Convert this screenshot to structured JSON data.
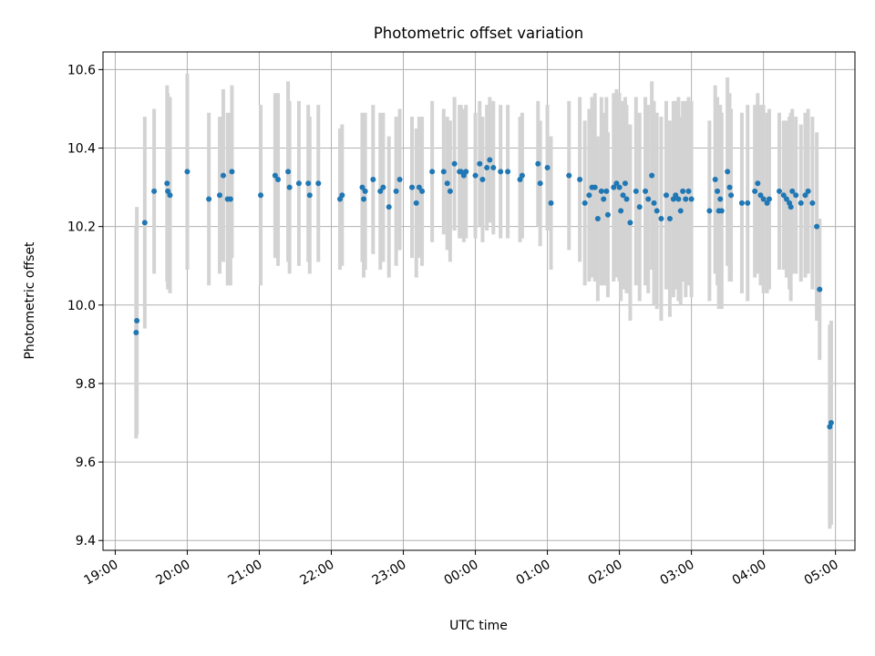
{
  "chart_data": {
    "type": "scatter",
    "title": "Photometric offset variation",
    "xlabel": "UTC time",
    "ylabel": "Photometric offset",
    "xlim": [
      -0.17,
      10.27
    ],
    "ylim": [
      9.375,
      10.645
    ],
    "grid": true,
    "x_ticks": [
      {
        "value": 0,
        "label": "19:00"
      },
      {
        "value": 1,
        "label": "20:00"
      },
      {
        "value": 2,
        "label": "21:00"
      },
      {
        "value": 3,
        "label": "22:00"
      },
      {
        "value": 4,
        "label": "23:00"
      },
      {
        "value": 5,
        "label": "00:00"
      },
      {
        "value": 6,
        "label": "01:00"
      },
      {
        "value": 7,
        "label": "02:00"
      },
      {
        "value": 8,
        "label": "03:00"
      },
      {
        "value": 9,
        "label": "04:00"
      },
      {
        "value": 10,
        "label": "05:00"
      }
    ],
    "y_ticks": [
      {
        "value": 9.4,
        "label": "9.4"
      },
      {
        "value": 9.6,
        "label": "9.6"
      },
      {
        "value": 9.8,
        "label": "9.8"
      },
      {
        "value": 10.0,
        "label": "10.0"
      },
      {
        "value": 10.2,
        "label": "10.2"
      },
      {
        "value": 10.4,
        "label": "10.4"
      },
      {
        "value": 10.6,
        "label": "10.6"
      }
    ],
    "series": [
      {
        "name": "offset",
        "color": "#1f77b4",
        "errorbar_color": "#d3d3d3",
        "x_unit": "hours after 19:00 UTC",
        "points": [
          [
            0.29,
            9.93,
            0.27
          ],
          [
            0.3,
            9.96,
            0.29
          ],
          [
            0.41,
            10.21,
            0.27
          ],
          [
            0.54,
            10.29,
            0.21
          ],
          [
            0.72,
            10.31,
            0.25
          ],
          [
            0.73,
            10.29,
            0.25
          ],
          [
            0.76,
            10.28,
            0.25
          ],
          [
            1.0,
            10.34,
            0.25
          ],
          [
            1.3,
            10.27,
            0.22
          ],
          [
            1.45,
            10.28,
            0.2
          ],
          [
            1.5,
            10.33,
            0.22
          ],
          [
            1.56,
            10.27,
            0.22
          ],
          [
            1.6,
            10.27,
            0.22
          ],
          [
            1.62,
            10.34,
            0.22
          ],
          [
            2.02,
            10.28,
            0.23
          ],
          [
            2.22,
            10.33,
            0.21
          ],
          [
            2.26,
            10.32,
            0.22
          ],
          [
            2.4,
            10.34,
            0.23
          ],
          [
            2.42,
            10.3,
            0.22
          ],
          [
            2.55,
            10.31,
            0.21
          ],
          [
            2.68,
            10.31,
            0.2
          ],
          [
            2.7,
            10.28,
            0.2
          ],
          [
            2.82,
            10.31,
            0.2
          ],
          [
            3.12,
            10.27,
            0.18
          ],
          [
            3.15,
            10.28,
            0.18
          ],
          [
            3.43,
            10.3,
            0.19
          ],
          [
            3.45,
            10.27,
            0.2
          ],
          [
            3.47,
            10.29,
            0.2
          ],
          [
            3.58,
            10.32,
            0.19
          ],
          [
            3.68,
            10.29,
            0.2
          ],
          [
            3.72,
            10.3,
            0.19
          ],
          [
            3.8,
            10.25,
            0.18
          ],
          [
            3.9,
            10.29,
            0.19
          ],
          [
            3.95,
            10.32,
            0.18
          ],
          [
            4.12,
            10.3,
            0.18
          ],
          [
            4.18,
            10.26,
            0.19
          ],
          [
            4.22,
            10.3,
            0.18
          ],
          [
            4.26,
            10.29,
            0.19
          ],
          [
            4.4,
            10.34,
            0.18
          ],
          [
            4.56,
            10.34,
            0.16
          ],
          [
            4.61,
            10.31,
            0.17
          ],
          [
            4.65,
            10.29,
            0.18
          ],
          [
            4.71,
            10.36,
            0.17
          ],
          [
            4.78,
            10.34,
            0.17
          ],
          [
            4.8,
            10.34,
            0.17
          ],
          [
            4.84,
            10.33,
            0.17
          ],
          [
            4.87,
            10.34,
            0.17
          ],
          [
            5.0,
            10.33,
            0.16
          ],
          [
            5.06,
            10.36,
            0.16
          ],
          [
            5.1,
            10.32,
            0.16
          ],
          [
            5.16,
            10.35,
            0.16
          ],
          [
            5.2,
            10.37,
            0.16
          ],
          [
            5.25,
            10.35,
            0.17
          ],
          [
            5.35,
            10.34,
            0.17
          ],
          [
            5.45,
            10.34,
            0.17
          ],
          [
            5.62,
            10.32,
            0.16
          ],
          [
            5.65,
            10.33,
            0.16
          ],
          [
            5.87,
            10.36,
            0.16
          ],
          [
            5.9,
            10.31,
            0.16
          ],
          [
            6.0,
            10.35,
            0.16
          ],
          [
            6.05,
            10.26,
            0.17
          ],
          [
            6.3,
            10.33,
            0.19
          ],
          [
            6.45,
            10.32,
            0.21
          ],
          [
            6.52,
            10.26,
            0.21
          ],
          [
            6.58,
            10.28,
            0.22
          ],
          [
            6.62,
            10.3,
            0.23
          ],
          [
            6.66,
            10.3,
            0.24
          ],
          [
            6.7,
            10.22,
            0.21
          ],
          [
            6.75,
            10.29,
            0.24
          ],
          [
            6.78,
            10.27,
            0.22
          ],
          [
            6.82,
            10.29,
            0.24
          ],
          [
            6.84,
            10.23,
            0.21
          ],
          [
            6.92,
            10.3,
            0.24
          ],
          [
            6.96,
            10.31,
            0.24
          ],
          [
            7.0,
            10.3,
            0.24
          ],
          [
            7.02,
            10.24,
            0.23
          ],
          [
            7.05,
            10.28,
            0.24
          ],
          [
            7.08,
            10.31,
            0.22
          ],
          [
            7.1,
            10.27,
            0.24
          ],
          [
            7.15,
            10.21,
            0.25
          ],
          [
            7.23,
            10.29,
            0.24
          ],
          [
            7.28,
            10.25,
            0.24
          ],
          [
            7.36,
            10.29,
            0.24
          ],
          [
            7.4,
            10.27,
            0.24
          ],
          [
            7.45,
            10.33,
            0.24
          ],
          [
            7.48,
            10.26,
            0.26
          ],
          [
            7.52,
            10.24,
            0.25
          ],
          [
            7.58,
            10.22,
            0.26
          ],
          [
            7.65,
            10.28,
            0.24
          ],
          [
            7.7,
            10.22,
            0.25
          ],
          [
            7.75,
            10.27,
            0.25
          ],
          [
            7.78,
            10.28,
            0.24
          ],
          [
            7.82,
            10.27,
            0.26
          ],
          [
            7.85,
            10.24,
            0.24
          ],
          [
            7.88,
            10.29,
            0.23
          ],
          [
            7.92,
            10.27,
            0.25
          ],
          [
            7.96,
            10.29,
            0.24
          ],
          [
            8.0,
            10.27,
            0.25
          ],
          [
            8.25,
            10.24,
            0.23
          ],
          [
            8.33,
            10.32,
            0.24
          ],
          [
            8.36,
            10.29,
            0.24
          ],
          [
            8.38,
            10.24,
            0.25
          ],
          [
            8.4,
            10.27,
            0.24
          ],
          [
            8.42,
            10.24,
            0.25
          ],
          [
            8.5,
            10.34,
            0.24
          ],
          [
            8.53,
            10.3,
            0.24
          ],
          [
            8.55,
            10.28,
            0.22
          ],
          [
            8.7,
            10.26,
            0.23
          ],
          [
            8.78,
            10.26,
            0.25
          ],
          [
            8.88,
            10.29,
            0.22
          ],
          [
            8.92,
            10.31,
            0.23
          ],
          [
            8.96,
            10.28,
            0.23
          ],
          [
            9.0,
            10.27,
            0.24
          ],
          [
            9.05,
            10.26,
            0.23
          ],
          [
            9.08,
            10.27,
            0.23
          ],
          [
            9.22,
            10.29,
            0.2
          ],
          [
            9.28,
            10.28,
            0.19
          ],
          [
            9.32,
            10.27,
            0.2
          ],
          [
            9.36,
            10.26,
            0.22
          ],
          [
            9.38,
            10.25,
            0.24
          ],
          [
            9.4,
            10.29,
            0.21
          ],
          [
            9.45,
            10.28,
            0.2
          ],
          [
            9.52,
            10.26,
            0.2
          ],
          [
            9.58,
            10.28,
            0.21
          ],
          [
            9.62,
            10.29,
            0.21
          ],
          [
            9.68,
            10.26,
            0.22
          ],
          [
            9.74,
            10.2,
            0.24
          ],
          [
            9.78,
            10.04,
            0.18
          ],
          [
            9.92,
            9.69,
            0.26
          ],
          [
            9.94,
            9.7,
            0.26
          ]
        ]
      }
    ]
  }
}
